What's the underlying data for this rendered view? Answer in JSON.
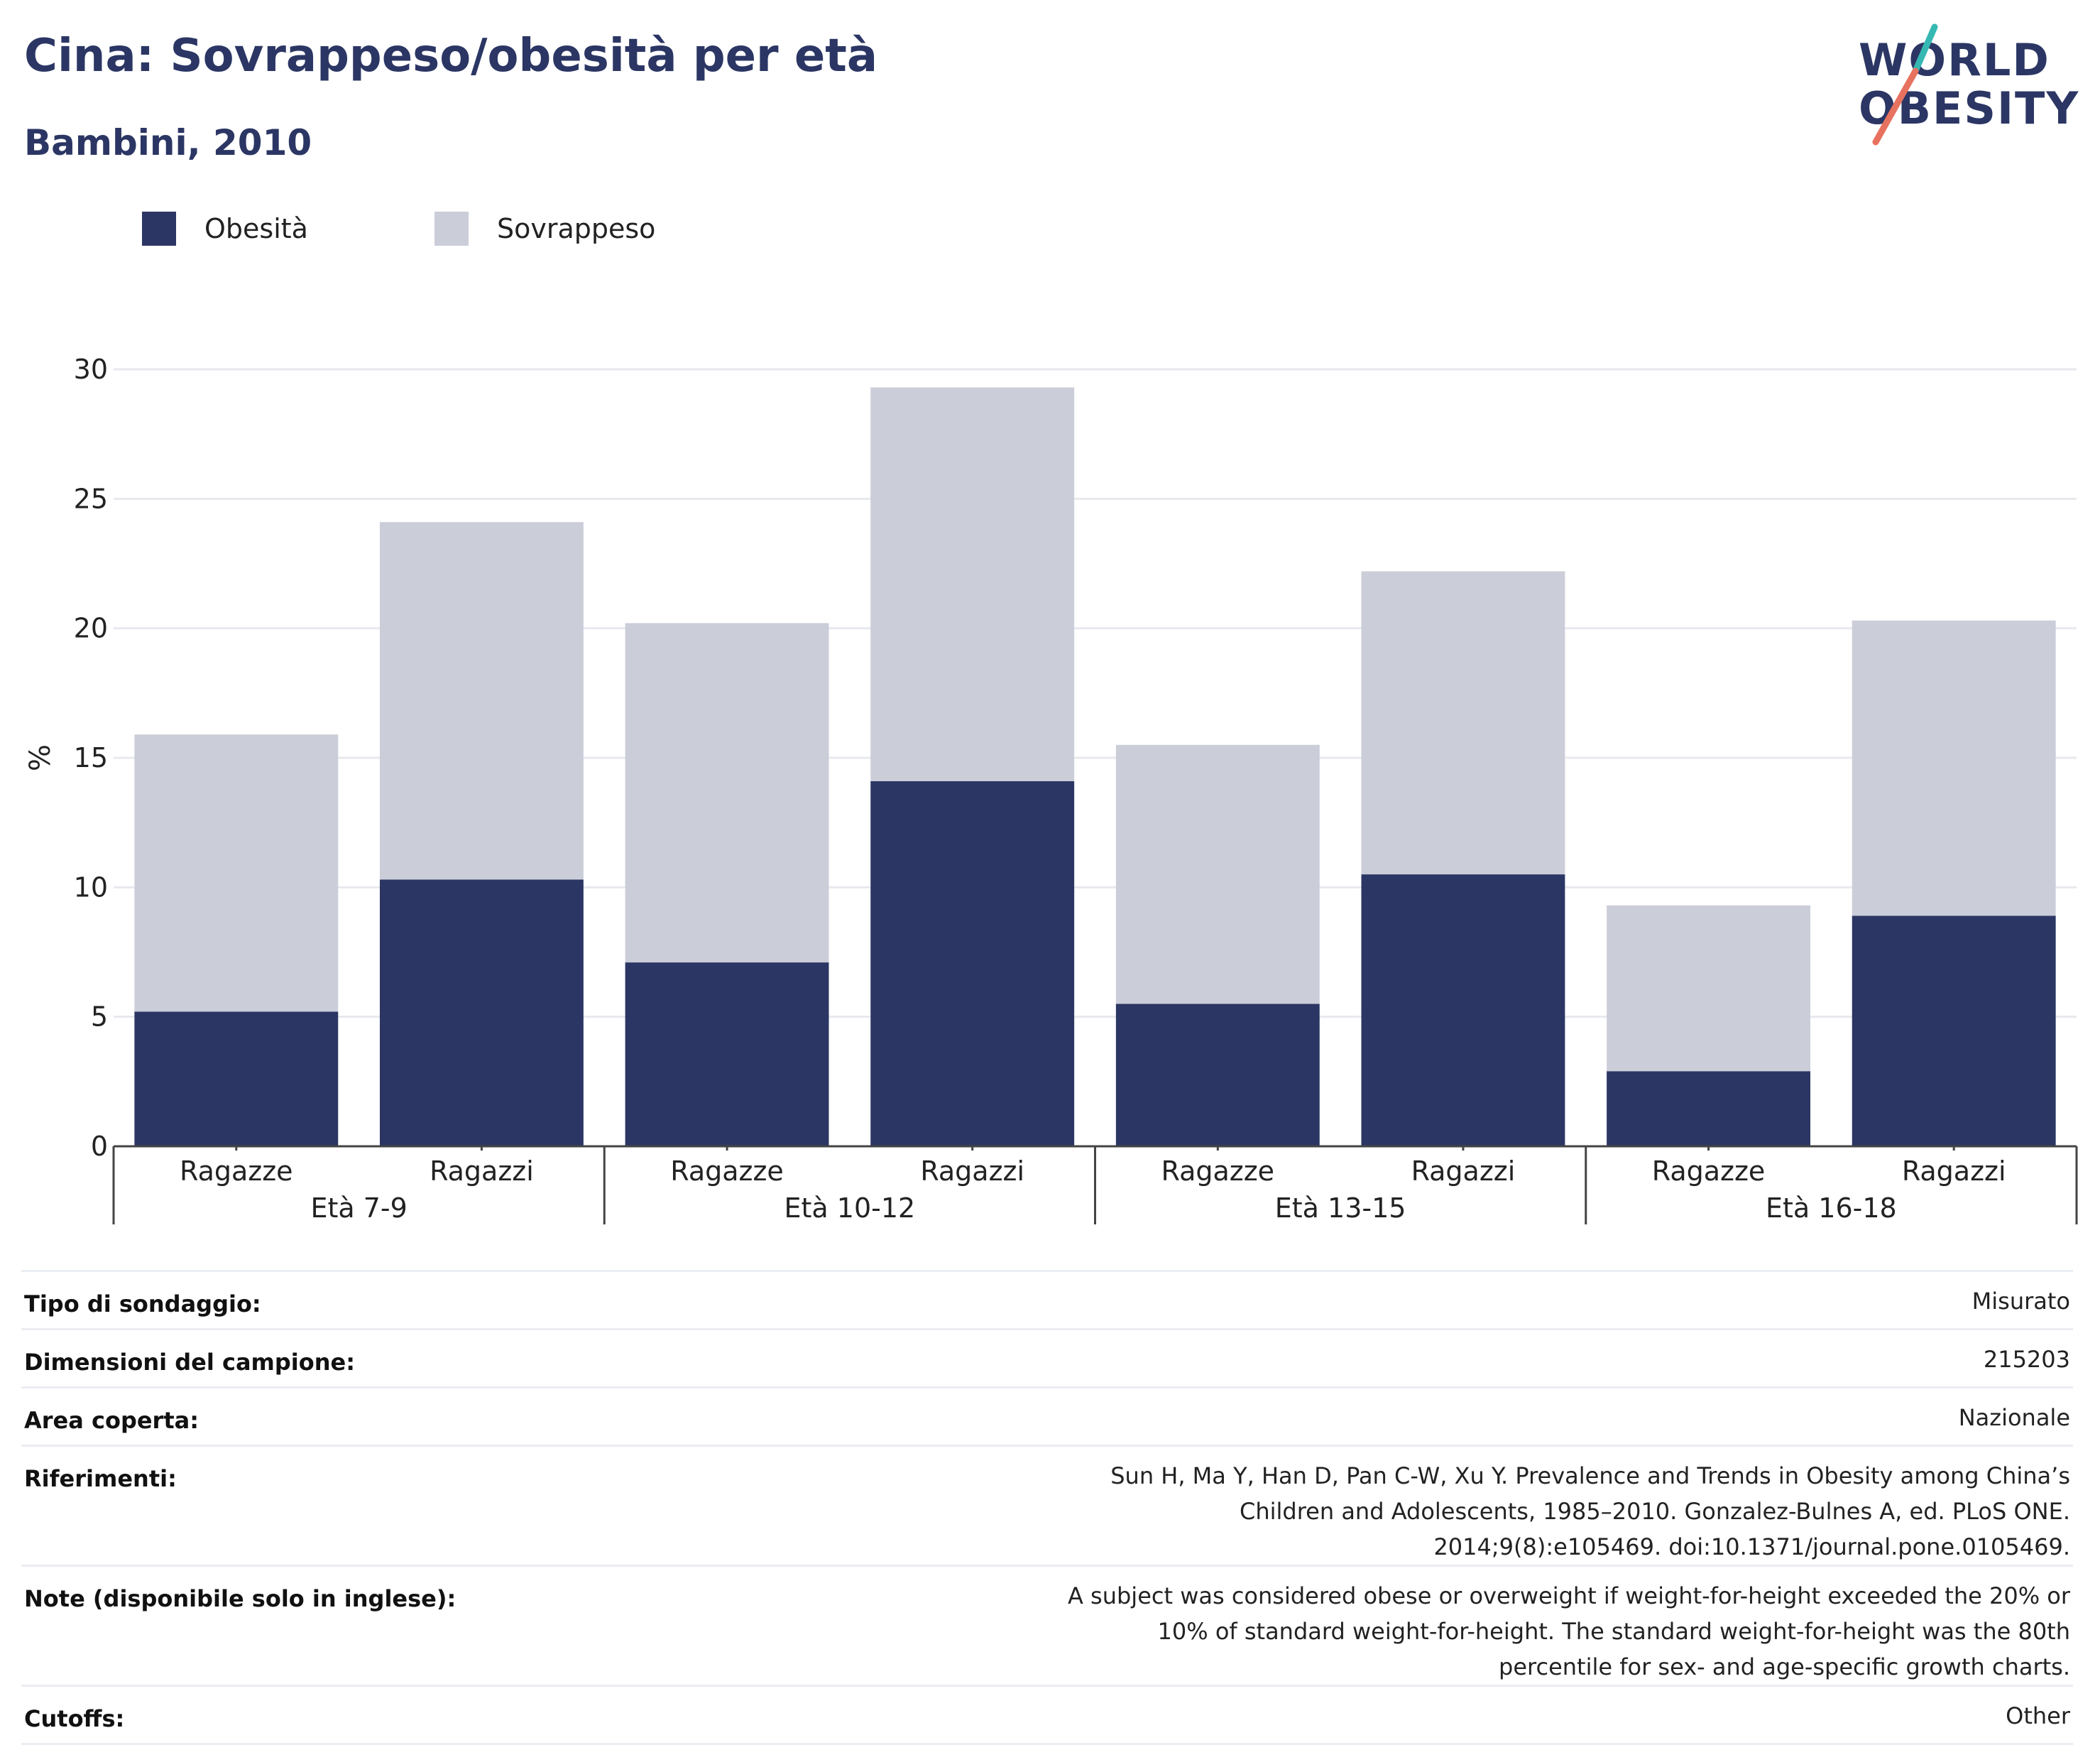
{
  "title": "Cina: Sovrappeso/obesità per età",
  "subtitle": "Bambini, 2010",
  "logo": {
    "line1": "WORLD",
    "line2": "OBESITY"
  },
  "colors": {
    "obesity": "#2b3664",
    "overweight": "#cbcdd9",
    "logo_teal": "#35b8b2",
    "logo_coral": "#e7725f",
    "grid": "#e8e9ee",
    "axis": "#444444"
  },
  "legend": [
    {
      "label": "Obesità",
      "color": "#2b3664"
    },
    {
      "label": "Sovrappeso",
      "color": "#cbcdd9"
    }
  ],
  "chart_data": {
    "type": "bar",
    "stacked": true,
    "ylabel": "%",
    "ylim": [
      0,
      30
    ],
    "yticks": [
      0,
      5,
      10,
      15,
      20,
      25,
      30
    ],
    "grid": true,
    "legend_position": "top-left",
    "groups": [
      "Età 7-9",
      "Età 10-12",
      "Età 13-15",
      "Età 16-18"
    ],
    "categories": [
      "Ragazze",
      "Ragazzi",
      "Ragazze",
      "Ragazzi",
      "Ragazze",
      "Ragazzi",
      "Ragazze",
      "Ragazzi"
    ],
    "series": [
      {
        "name": "Obesità",
        "values": [
          5.2,
          10.3,
          7.1,
          14.1,
          5.5,
          10.5,
          2.9,
          8.9
        ]
      },
      {
        "name": "Sovrappeso",
        "values": [
          10.7,
          13.8,
          13.1,
          15.2,
          10.0,
          11.7,
          6.4,
          11.4
        ]
      }
    ]
  },
  "info": [
    {
      "key": "Tipo di sondaggio:",
      "value": "Misurato"
    },
    {
      "key": "Dimensioni del campione:",
      "value": "215203"
    },
    {
      "key": "Area coperta:",
      "value": "Nazionale"
    },
    {
      "key": "Riferimenti:",
      "value": "Sun H, Ma Y, Han D, Pan C-W, Xu Y. Prevalence and Trends in Obesity among China’s Children and Adolescents, 1985–2010. Gonzalez-Bulnes A, ed. PLoS ONE. 2014;9(8):e105469. doi:10.1371/journal.pone.0105469."
    },
    {
      "key": "Note (disponibile solo in inglese):",
      "value": "A subject was considered obese or overweight if weight-for-height exceeded the 20% or 10% of standard weight-for-height. The standard weight-for-height was the 80th percentile for sex- and age-specific growth charts."
    },
    {
      "key": "Cutoffs:",
      "value": "Other"
    }
  ]
}
